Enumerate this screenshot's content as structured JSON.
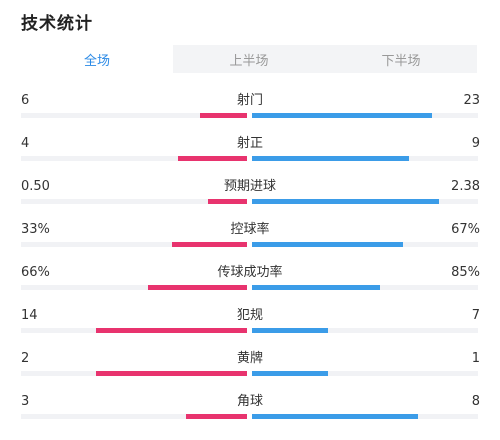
{
  "page": {
    "title": "技术统计"
  },
  "tabs": [
    {
      "label": "全场",
      "active": true
    },
    {
      "label": "上半场",
      "active": false
    },
    {
      "label": "下半场",
      "active": false
    }
  ],
  "colors": {
    "home": "#e8336e",
    "away": "#3b9ce8",
    "active_tab": "#2b8ae6"
  },
  "stats": [
    {
      "label": "射门",
      "home": "6",
      "away": "23",
      "home_frac": 0.207,
      "away_frac": 0.796
    },
    {
      "label": "射正",
      "home": "4",
      "away": "9",
      "home_frac": 0.307,
      "away_frac": 0.695
    },
    {
      "label": "预期进球",
      "home": "0.50",
      "away": "2.38",
      "home_frac": 0.173,
      "away_frac": 0.827
    },
    {
      "label": "控球率",
      "home": "33%",
      "away": "67%",
      "home_frac": 0.33,
      "away_frac": 0.67
    },
    {
      "label": "传球成功率",
      "home": "66%",
      "away": "85%",
      "home_frac": 0.44,
      "away_frac": 0.566
    },
    {
      "label": "犯规",
      "home": "14",
      "away": "7",
      "home_frac": 0.669,
      "away_frac": 0.336
    },
    {
      "label": "黄牌",
      "home": "2",
      "away": "1",
      "home_frac": 0.669,
      "away_frac": 0.336
    },
    {
      "label": "角球",
      "home": "3",
      "away": "8",
      "home_frac": 0.27,
      "away_frac": 0.735
    }
  ]
}
